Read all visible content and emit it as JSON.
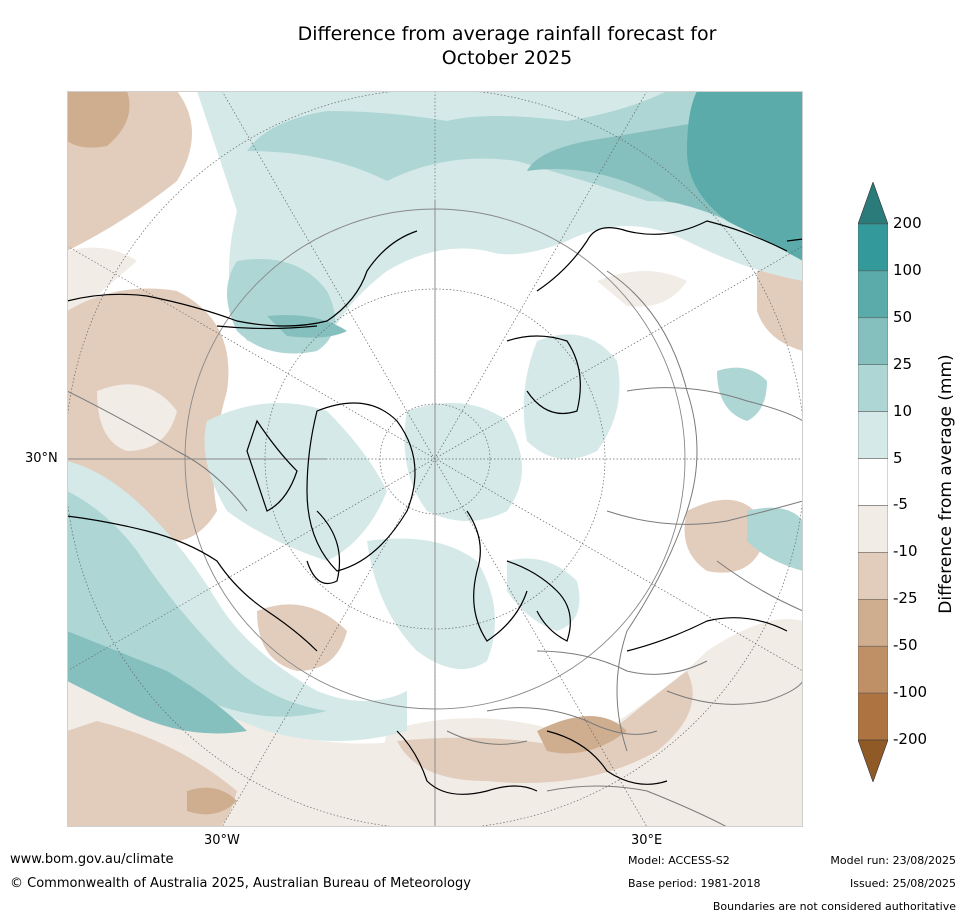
{
  "title": {
    "line1": "Difference from average rainfall forecast for",
    "line2": "October 2025"
  },
  "map": {
    "projection": "north-polar-stereographic",
    "labels": {
      "lat_30n": "30°N",
      "lon_30w": "30°W",
      "lon_30e": "30°E"
    }
  },
  "colorbar": {
    "title": "Difference from average (mm)",
    "ticks": [
      "200",
      "100",
      "50",
      "25",
      "10",
      "5",
      "-5",
      "-10",
      "-25",
      "-50",
      "-100",
      "-200"
    ],
    "colors": [
      "#2b7b7b",
      "#33999a",
      "#5aabaa",
      "#85c0bf",
      "#add6d5",
      "#d4e9e8",
      "#ffffff",
      "#f2ece6",
      "#e2cdbd",
      "#cfae8f",
      "#bf9066",
      "#ad7341",
      "#905a26"
    ]
  },
  "footer": {
    "website": "www.bom.gov.au/climate",
    "copyright": "© Commonwealth of Australia 2025, Australian Bureau of Meteorology",
    "model": "Model: ACCESS-S2",
    "base_period": "Base period: 1981-2018",
    "model_run": "Model run: 23/08/2025",
    "issued": "Issued: 25/08/2025",
    "disclaimer": "Boundaries are not considered authoritative"
  }
}
